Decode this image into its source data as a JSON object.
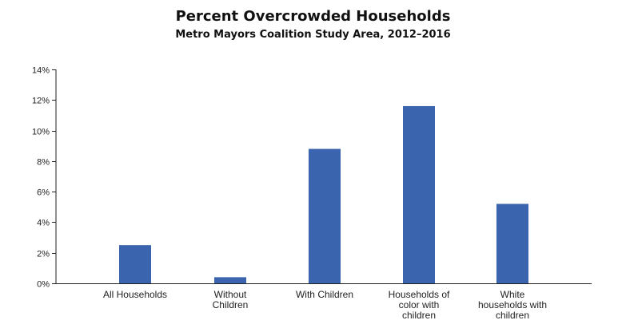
{
  "chart_data": {
    "type": "bar",
    "title": "Percent Overcrowded Households",
    "subtitle": "Metro Mayors Coalition Study Area, 2012–2016",
    "categories": [
      [
        "All Households"
      ],
      [
        "Without",
        "Children"
      ],
      [
        "With Children"
      ],
      [
        "Households of",
        "color with",
        "children"
      ],
      [
        "White",
        "households with",
        "children"
      ]
    ],
    "values": [
      2.5,
      0.4,
      8.8,
      11.6,
      5.2
    ],
    "ylim": [
      0,
      14
    ],
    "yticks": [
      0,
      2,
      4,
      6,
      8,
      10,
      12,
      14
    ],
    "ytick_labels": [
      "0%",
      "2%",
      "4%",
      "6%",
      "8%",
      "10%",
      "12%",
      "14%"
    ],
    "xlabel": "",
    "ylabel": "",
    "bar_color": "#3b64ae",
    "grid": false
  }
}
